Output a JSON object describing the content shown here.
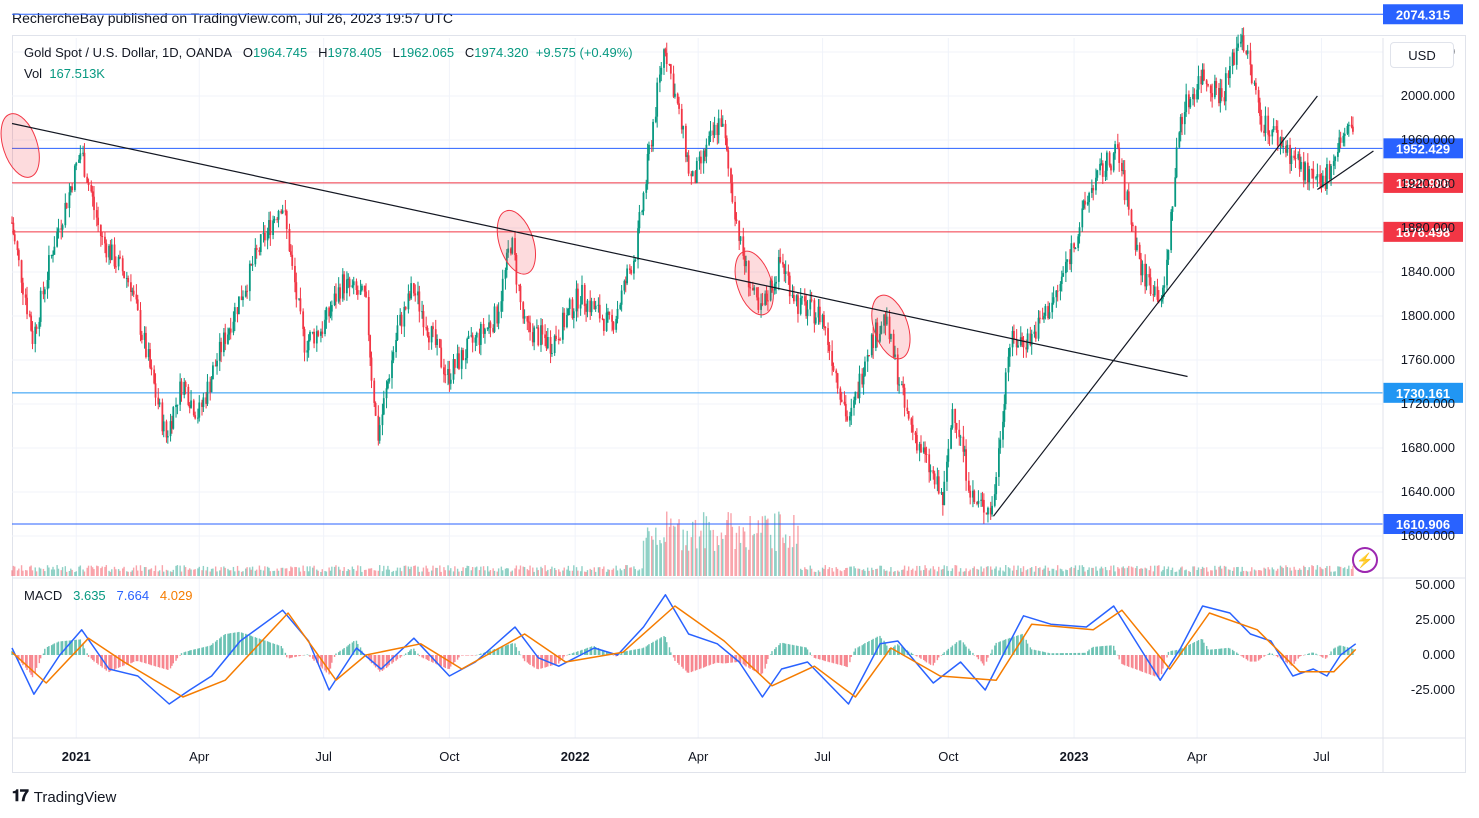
{
  "header": {
    "publisher": "RechercheBay published on TradingView.com, Jul 26, 2023 19:57 UTC"
  },
  "legend": {
    "symbol": "Gold Spot / U.S. Dollar, 1D, OANDA",
    "open_label": "O",
    "open": "1964.745",
    "high_label": "H",
    "high": "1978.405",
    "low_label": "L",
    "low": "1962.065",
    "close_label": "C",
    "close": "1974.320",
    "change": "+9.575 (+0.49%)",
    "vol_label": "Vol",
    "vol": "167.513K"
  },
  "currency": "USD",
  "macd_legend": {
    "label": "MACD",
    "hist": "3.635",
    "macd": "7.664",
    "signal": "4.029"
  },
  "footer": {
    "brand": "TradingView"
  },
  "chart_data": {
    "type": "candlestick",
    "price_axis": {
      "ticks": [
        "2040.000",
        "2000.000",
        "1960.000",
        "1920.000",
        "1880.000",
        "1840.000",
        "1800.000",
        "1760.000",
        "1720.000",
        "1680.000",
        "1640.000",
        "1600.000"
      ],
      "range": [
        1600,
        2080
      ]
    },
    "time_axis": {
      "ticks": [
        {
          "label": "2021",
          "bold": true
        },
        {
          "label": "Apr",
          "bold": false
        },
        {
          "label": "Jul",
          "bold": false
        },
        {
          "label": "Oct",
          "bold": false
        },
        {
          "label": "2022",
          "bold": true
        },
        {
          "label": "Apr",
          "bold": false
        },
        {
          "label": "Jul",
          "bold": false
        },
        {
          "label": "Oct",
          "bold": false
        },
        {
          "label": "2023",
          "bold": true
        },
        {
          "label": "Apr",
          "bold": false
        },
        {
          "label": "Jul",
          "bold": false
        }
      ],
      "range": [
        "2020-11-15",
        "2023-08-15"
      ]
    },
    "horizontal_levels": [
      {
        "value": 2074.315,
        "label": "2074.315",
        "color": "#2962ff"
      },
      {
        "value": 1952.429,
        "label": "1952.429",
        "color": "#2962ff"
      },
      {
        "value": 1920.986,
        "label": "1920.986",
        "color": "#f23645"
      },
      {
        "value": 1876.498,
        "label": "1876.498",
        "color": "#f23645"
      },
      {
        "value": 1730.161,
        "label": "1730.161",
        "color": "#2196f3"
      },
      {
        "value": 1610.906,
        "label": "1610.906",
        "color": "#2962ff"
      }
    ],
    "trendlines": [
      {
        "from": [
          "2020-11-15",
          1975
        ],
        "to": [
          "2023-03-25",
          1745
        ]
      },
      {
        "from": [
          "2022-11-03",
          1618
        ],
        "to": [
          "2023-06-28",
          2000
        ]
      },
      {
        "from": [
          "2023-06-28",
          1915
        ],
        "to": [
          "2023-08-08",
          1950
        ]
      }
    ],
    "ellipses": [
      {
        "center": [
          "2020-11-21",
          1955
        ]
      },
      {
        "center": [
          "2021-11-19",
          1867
        ]
      },
      {
        "center": [
          "2022-05-12",
          1830
        ]
      },
      {
        "center": [
          "2022-08-20",
          1790
        ]
      }
    ],
    "price_path": [
      [
        "2020-11-15",
        1885
      ],
      [
        "2020-12-01",
        1780
      ],
      [
        "2020-12-15",
        1860
      ],
      [
        "2021-01-05",
        1950
      ],
      [
        "2021-01-20",
        1870
      ],
      [
        "2021-02-10",
        1830
      ],
      [
        "2021-03-08",
        1690
      ],
      [
        "2021-03-20",
        1740
      ],
      [
        "2021-04-01",
        1710
      ],
      [
        "2021-04-20",
        1780
      ],
      [
        "2021-05-15",
        1860
      ],
      [
        "2021-06-01",
        1905
      ],
      [
        "2021-06-17",
        1775
      ],
      [
        "2021-07-01",
        1790
      ],
      [
        "2021-07-15",
        1830
      ],
      [
        "2021-08-01",
        1815
      ],
      [
        "2021-08-10",
        1690
      ],
      [
        "2021-08-25",
        1790
      ],
      [
        "2021-09-05",
        1825
      ],
      [
        "2021-09-30",
        1745
      ],
      [
        "2021-10-15",
        1770
      ],
      [
        "2021-11-05",
        1800
      ],
      [
        "2021-11-16",
        1870
      ],
      [
        "2021-11-25",
        1790
      ],
      [
        "2021-12-15",
        1775
      ],
      [
        "2022-01-05",
        1820
      ],
      [
        "2022-01-28",
        1790
      ],
      [
        "2022-02-15",
        1860
      ],
      [
        "2022-03-08",
        2050
      ],
      [
        "2022-03-28",
        1920
      ],
      [
        "2022-04-18",
        1980
      ],
      [
        "2022-05-03",
        1860
      ],
      [
        "2022-05-16",
        1800
      ],
      [
        "2022-06-01",
        1850
      ],
      [
        "2022-06-14",
        1810
      ],
      [
        "2022-07-01",
        1800
      ],
      [
        "2022-07-21",
        1700
      ],
      [
        "2022-08-03",
        1770
      ],
      [
        "2022-08-16",
        1800
      ],
      [
        "2022-09-01",
        1710
      ],
      [
        "2022-09-28",
        1630
      ],
      [
        "2022-10-05",
        1720
      ],
      [
        "2022-10-20",
        1630
      ],
      [
        "2022-11-03",
        1625
      ],
      [
        "2022-11-15",
        1775
      ],
      [
        "2022-12-01",
        1780
      ],
      [
        "2022-12-20",
        1820
      ],
      [
        "2023-01-15",
        1920
      ],
      [
        "2023-02-02",
        1950
      ],
      [
        "2023-02-20",
        1840
      ],
      [
        "2023-03-08",
        1815
      ],
      [
        "2023-03-20",
        1980
      ],
      [
        "2023-04-05",
        2020
      ],
      [
        "2023-04-20",
        2000
      ],
      [
        "2023-05-04",
        2060
      ],
      [
        "2023-05-18",
        1980
      ],
      [
        "2023-06-01",
        1960
      ],
      [
        "2023-06-20",
        1930
      ],
      [
        "2023-07-01",
        1915
      ],
      [
        "2023-07-15",
        1960
      ],
      [
        "2023-07-26",
        1974
      ]
    ],
    "macd_axis": {
      "ticks": [
        "50.000",
        "25.000",
        "0.000",
        "-25.000"
      ],
      "range": [
        -45,
        55
      ]
    },
    "macd_path": [
      [
        "2020-11-15",
        5
      ],
      [
        "2020-12-01",
        -28
      ],
      [
        "2020-12-20",
        0
      ],
      [
        "2021-01-05",
        18
      ],
      [
        "2021-01-25",
        -10
      ],
      [
        "2021-02-15",
        -15
      ],
      [
        "2021-03-10",
        -35
      ],
      [
        "2021-03-25",
        -25
      ],
      [
        "2021-04-10",
        -15
      ],
      [
        "2021-05-01",
        10
      ],
      [
        "2021-06-01",
        32
      ],
      [
        "2021-06-20",
        10
      ],
      [
        "2021-07-05",
        -25
      ],
      [
        "2021-07-25",
        5
      ],
      [
        "2021-08-12",
        -10
      ],
      [
        "2021-09-05",
        12
      ],
      [
        "2021-10-01",
        -15
      ],
      [
        "2021-10-20",
        -5
      ],
      [
        "2021-11-18",
        20
      ],
      [
        "2021-12-05",
        -2
      ],
      [
        "2021-12-20",
        -8
      ],
      [
        "2022-01-15",
        5
      ],
      [
        "2022-02-01",
        0
      ],
      [
        "2022-02-20",
        20
      ],
      [
        "2022-03-08",
        43
      ],
      [
        "2022-03-25",
        15
      ],
      [
        "2022-04-15",
        8
      ],
      [
        "2022-05-01",
        -5
      ],
      [
        "2022-05-18",
        -30
      ],
      [
        "2022-06-01",
        -10
      ],
      [
        "2022-06-20",
        -5
      ],
      [
        "2022-07-20",
        -35
      ],
      [
        "2022-08-12",
        8
      ],
      [
        "2022-08-25",
        10
      ],
      [
        "2022-09-20",
        -20
      ],
      [
        "2022-10-10",
        -5
      ],
      [
        "2022-10-28",
        -25
      ],
      [
        "2022-11-10",
        0
      ],
      [
        "2022-11-25",
        28
      ],
      [
        "2022-12-15",
        22
      ],
      [
        "2023-01-10",
        20
      ],
      [
        "2023-01-30",
        35
      ],
      [
        "2023-02-15",
        10
      ],
      [
        "2023-03-05",
        -18
      ],
      [
        "2023-03-20",
        5
      ],
      [
        "2023-04-05",
        35
      ],
      [
        "2023-04-25",
        30
      ],
      [
        "2023-05-10",
        15
      ],
      [
        "2023-05-25",
        10
      ],
      [
        "2023-06-10",
        -15
      ],
      [
        "2023-06-25",
        -10
      ],
      [
        "2023-07-05",
        -15
      ],
      [
        "2023-07-15",
        0
      ],
      [
        "2023-07-26",
        8
      ]
    ],
    "signal_path": [
      [
        "2020-11-15",
        2
      ],
      [
        "2020-12-10",
        -20
      ],
      [
        "2021-01-10",
        12
      ],
      [
        "2021-02-05",
        -5
      ],
      [
        "2021-03-20",
        -30
      ],
      [
        "2021-04-20",
        -18
      ],
      [
        "2021-06-05",
        30
      ],
      [
        "2021-07-10",
        -18
      ],
      [
        "2021-08-01",
        0
      ],
      [
        "2021-09-10",
        8
      ],
      [
        "2021-10-10",
        -10
      ],
      [
        "2021-11-25",
        15
      ],
      [
        "2021-12-25",
        -5
      ],
      [
        "2022-02-05",
        2
      ],
      [
        "2022-03-15",
        35
      ],
      [
        "2022-04-20",
        10
      ],
      [
        "2022-05-25",
        -22
      ],
      [
        "2022-06-25",
        -8
      ],
      [
        "2022-07-25",
        -30
      ],
      [
        "2022-08-20",
        5
      ],
      [
        "2022-09-25",
        -15
      ],
      [
        "2022-11-05",
        -18
      ],
      [
        "2022-12-01",
        22
      ],
      [
        "2023-01-15",
        18
      ],
      [
        "2023-02-05",
        32
      ],
      [
        "2023-03-12",
        -10
      ],
      [
        "2023-04-10",
        30
      ],
      [
        "2023-05-15",
        18
      ],
      [
        "2023-06-15",
        -12
      ],
      [
        "2023-07-10",
        -12
      ],
      [
        "2023-07-26",
        4
      ]
    ],
    "volume_bars_note": "",
    "grid": true
  }
}
